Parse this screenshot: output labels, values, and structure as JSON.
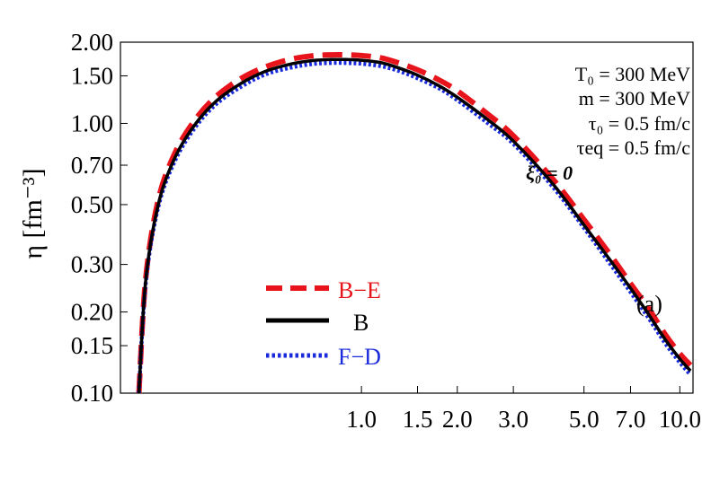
{
  "chart_data": {
    "type": "line",
    "xscale": "log",
    "yscale": "log",
    "xlim": [
      0.175,
      11.0
    ],
    "ylim": [
      0.1,
      2.0
    ],
    "grid": false,
    "legend_placement": "lower-left",
    "ylabel": "η  [fm⁻³]",
    "xlabel": "",
    "xticks": [
      {
        "value": 1.0,
        "label": "1.0"
      },
      {
        "value": 1.5,
        "label": "1.5"
      },
      {
        "value": 2.0,
        "label": "2.0"
      },
      {
        "value": 3.0,
        "label": "3.0"
      },
      {
        "value": 5.0,
        "label": "5.0"
      },
      {
        "value": 7.0,
        "label": "7.0"
      },
      {
        "value": 10.0,
        "label": "10.0"
      }
    ],
    "yticks": [
      {
        "value": 2.0,
        "label": "2.00"
      },
      {
        "value": 1.5,
        "label": "1.50"
      },
      {
        "value": 1.0,
        "label": "1.00"
      },
      {
        "value": 0.7,
        "label": "0.70"
      },
      {
        "value": 0.5,
        "label": "0.50"
      },
      {
        "value": 0.3,
        "label": "0.30"
      },
      {
        "value": 0.2,
        "label": "0.20"
      },
      {
        "value": 0.15,
        "label": "0.15"
      },
      {
        "value": 0.1,
        "label": "0.10"
      }
    ],
    "x": [
      0.2,
      0.21,
      0.23,
      0.26,
      0.3,
      0.35,
      0.42,
      0.5,
      0.6,
      0.7,
      0.8,
      0.9,
      1.0,
      1.15,
      1.3,
      1.5,
      1.75,
      2.0,
      2.5,
      3.0,
      4.0,
      5.0,
      6.0,
      7.0,
      8.0,
      9.0,
      10.0,
      10.8
    ],
    "series": [
      {
        "name": "B−E",
        "color": "#e8141c",
        "style": "dashed",
        "values": [
          0.1,
          0.265,
          0.52,
          0.78,
          1.03,
          1.26,
          1.47,
          1.62,
          1.73,
          1.78,
          1.795,
          1.795,
          1.785,
          1.75,
          1.68,
          1.58,
          1.45,
          1.32,
          1.08,
          0.9,
          0.62,
          0.44,
          0.33,
          0.255,
          0.205,
          0.165,
          0.14,
          0.127
        ]
      },
      {
        "name": "B",
        "color": "#000000",
        "style": "solid",
        "values": [
          0.1,
          0.26,
          0.5,
          0.75,
          0.99,
          1.21,
          1.41,
          1.56,
          1.66,
          1.71,
          1.725,
          1.725,
          1.715,
          1.68,
          1.61,
          1.51,
          1.38,
          1.25,
          1.03,
          0.86,
          0.595,
          0.42,
          0.315,
          0.245,
          0.195,
          0.158,
          0.134,
          0.121
        ]
      },
      {
        "name": "F−D",
        "color": "#1a2bdc",
        "style": "dotted",
        "values": [
          0.1,
          0.255,
          0.49,
          0.73,
          0.965,
          1.18,
          1.37,
          1.52,
          1.61,
          1.66,
          1.675,
          1.675,
          1.665,
          1.63,
          1.57,
          1.47,
          1.35,
          1.22,
          1.0,
          0.84,
          0.58,
          0.41,
          0.305,
          0.237,
          0.189,
          0.153,
          0.13,
          0.117
        ]
      }
    ],
    "annotations": {
      "params": [
        "T₀ = 300 MeV",
        "m = 300 MeV",
        "τ₀ = 0.5 fm/c",
        "τeq = 0.5 fm/c",
        "ξ₀ = 0"
      ],
      "panel_label": "(a)"
    }
  }
}
